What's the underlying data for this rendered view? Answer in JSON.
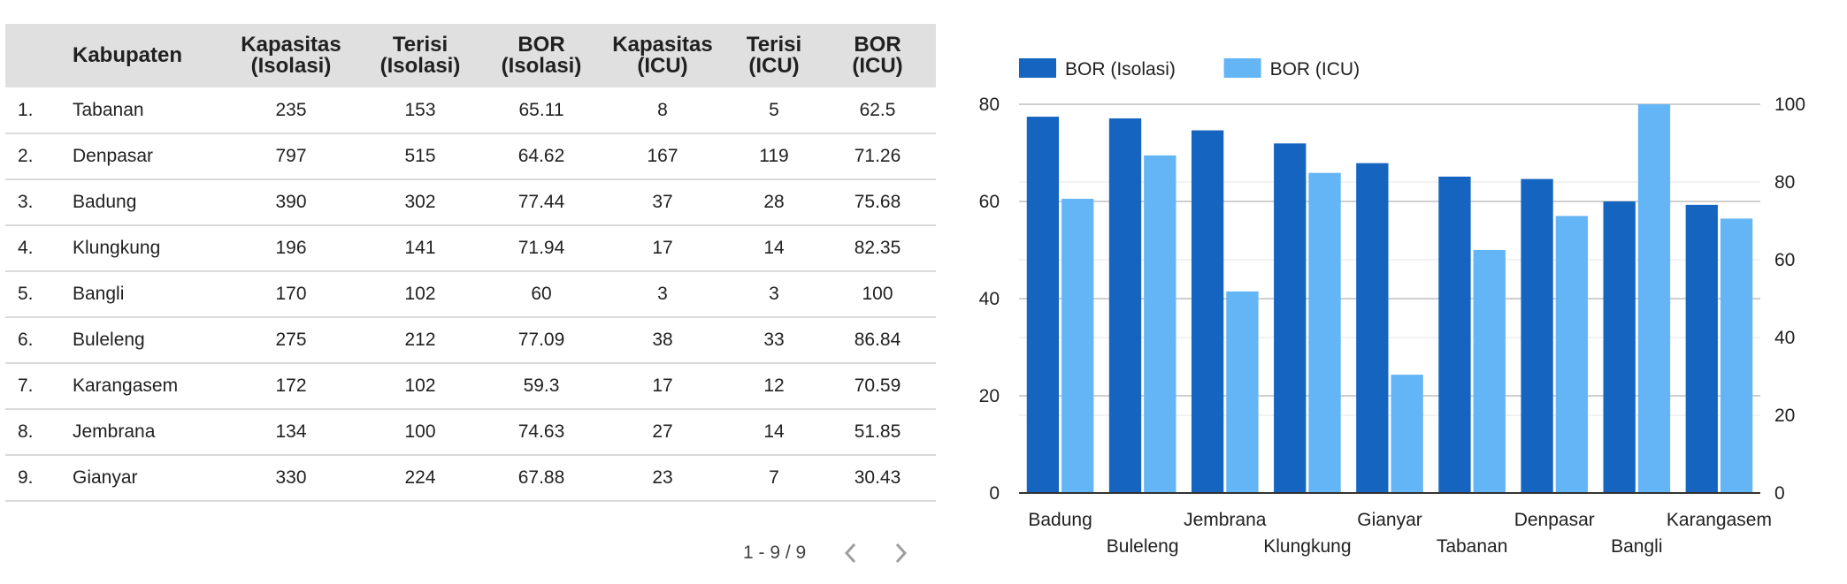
{
  "table": {
    "columns": [
      {
        "line1": "",
        "line2": ""
      },
      {
        "line1": "Kabupaten",
        "line2": ""
      },
      {
        "line1": "Kapasitas",
        "line2": "(Isolasi)"
      },
      {
        "line1": "Terisi",
        "line2": "(Isolasi)"
      },
      {
        "line1": "BOR",
        "line2": "(Isolasi)"
      },
      {
        "line1": "Kapasitas",
        "line2": "(ICU)"
      },
      {
        "line1": "Terisi",
        "line2": "(ICU)"
      },
      {
        "line1": "BOR",
        "line2": "(ICU)"
      }
    ],
    "rows": [
      {
        "idx": "1.",
        "name": "Tabanan",
        "kap_iso": "235",
        "ter_iso": "153",
        "bor_iso": "65.11",
        "kap_icu": "8",
        "ter_icu": "5",
        "bor_icu": "62.5"
      },
      {
        "idx": "2.",
        "name": "Denpasar",
        "kap_iso": "797",
        "ter_iso": "515",
        "bor_iso": "64.62",
        "kap_icu": "167",
        "ter_icu": "119",
        "bor_icu": "71.26"
      },
      {
        "idx": "3.",
        "name": "Badung",
        "kap_iso": "390",
        "ter_iso": "302",
        "bor_iso": "77.44",
        "kap_icu": "37",
        "ter_icu": "28",
        "bor_icu": "75.68"
      },
      {
        "idx": "4.",
        "name": "Klungkung",
        "kap_iso": "196",
        "ter_iso": "141",
        "bor_iso": "71.94",
        "kap_icu": "17",
        "ter_icu": "14",
        "bor_icu": "82.35"
      },
      {
        "idx": "5.",
        "name": "Bangli",
        "kap_iso": "170",
        "ter_iso": "102",
        "bor_iso": "60",
        "kap_icu": "3",
        "ter_icu": "3",
        "bor_icu": "100"
      },
      {
        "idx": "6.",
        "name": "Buleleng",
        "kap_iso": "275",
        "ter_iso": "212",
        "bor_iso": "77.09",
        "kap_icu": "38",
        "ter_icu": "33",
        "bor_icu": "86.84"
      },
      {
        "idx": "7.",
        "name": "Karangasem",
        "kap_iso": "172",
        "ter_iso": "102",
        "bor_iso": "59.3",
        "kap_icu": "17",
        "ter_icu": "12",
        "bor_icu": "70.59"
      },
      {
        "idx": "8.",
        "name": "Jembrana",
        "kap_iso": "134",
        "ter_iso": "100",
        "bor_iso": "74.63",
        "kap_icu": "27",
        "ter_icu": "14",
        "bor_icu": "51.85"
      },
      {
        "idx": "9.",
        "name": "Gianyar",
        "kap_iso": "330",
        "ter_iso": "224",
        "bor_iso": "67.88",
        "kap_icu": "23",
        "ter_icu": "7",
        "bor_icu": "30.43"
      }
    ]
  },
  "pager": {
    "text": "1 - 9 / 9",
    "prev_icon": "chevron-left-icon",
    "next_icon": "chevron-right-icon"
  },
  "chart_data": {
    "type": "bar",
    "categories": [
      "Badung",
      "Buleleng",
      "Jembrana",
      "Klungkung",
      "Gianyar",
      "Tabanan",
      "Denpasar",
      "Bangli",
      "Karangasem"
    ],
    "series": [
      {
        "name": "BOR (Isolasi)",
        "axis": "left",
        "color": "#1565c0",
        "values": [
          77.44,
          77.09,
          74.63,
          71.94,
          67.88,
          65.11,
          64.62,
          60,
          59.3
        ]
      },
      {
        "name": "BOR (ICU)",
        "axis": "right",
        "color": "#64b5f6",
        "values": [
          75.68,
          86.84,
          51.85,
          82.35,
          30.43,
          62.5,
          71.26,
          100,
          70.59
        ]
      }
    ],
    "title": "",
    "xlabel": "",
    "ylabel": "",
    "ylim_left": [
      0,
      80
    ],
    "yticks_left": [
      0,
      20,
      40,
      60,
      80
    ],
    "ylim_right": [
      0,
      100
    ],
    "yticks_right": [
      0,
      20,
      40,
      60,
      80,
      100
    ],
    "grid": true,
    "legend": "top-left"
  }
}
